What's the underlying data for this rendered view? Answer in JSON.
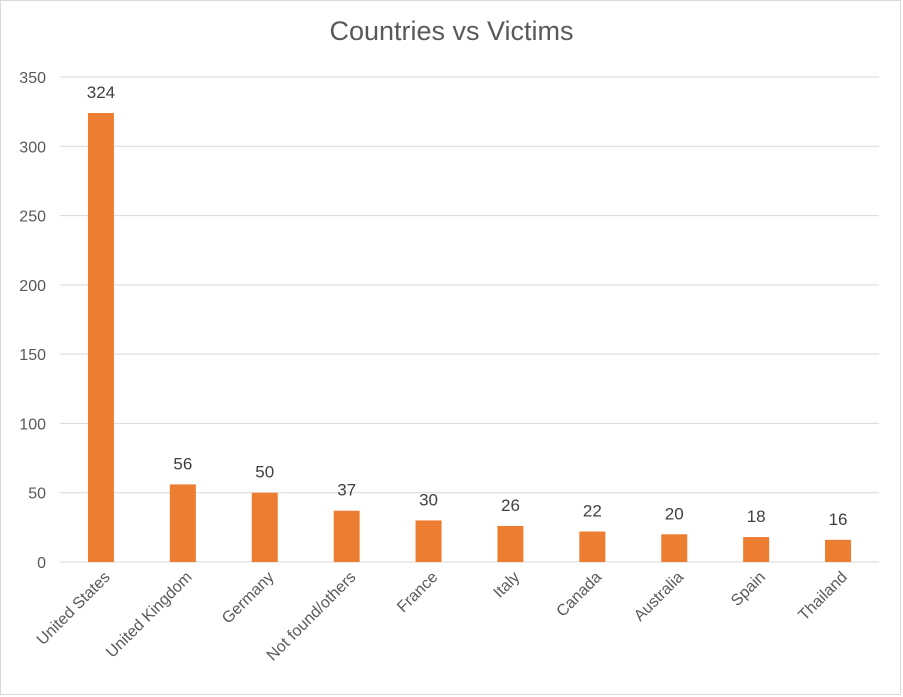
{
  "chart_data": {
    "type": "bar",
    "title": "Countries vs Victims",
    "categories": [
      "United States",
      "United Kingdom",
      "Germany",
      "Not found/others",
      "France",
      "Italy",
      "Canada",
      "Australia",
      "Spain",
      "Thailand"
    ],
    "values": [
      324,
      56,
      50,
      37,
      30,
      26,
      22,
      20,
      18,
      16
    ],
    "data_labels": [
      "324",
      "56",
      "50",
      "37",
      "30",
      "26",
      "22",
      "20",
      "18",
      "16"
    ],
    "ylim": [
      0,
      350
    ],
    "y_ticks": [
      0,
      50,
      100,
      150,
      200,
      250,
      300,
      350
    ],
    "y_tick_labels": [
      "0",
      "50",
      "100",
      "150",
      "200",
      "250",
      "300",
      "350"
    ],
    "grid": true,
    "bar_color": "#ed7d31",
    "grid_color": "#d9d9d9",
    "legend": "none"
  }
}
